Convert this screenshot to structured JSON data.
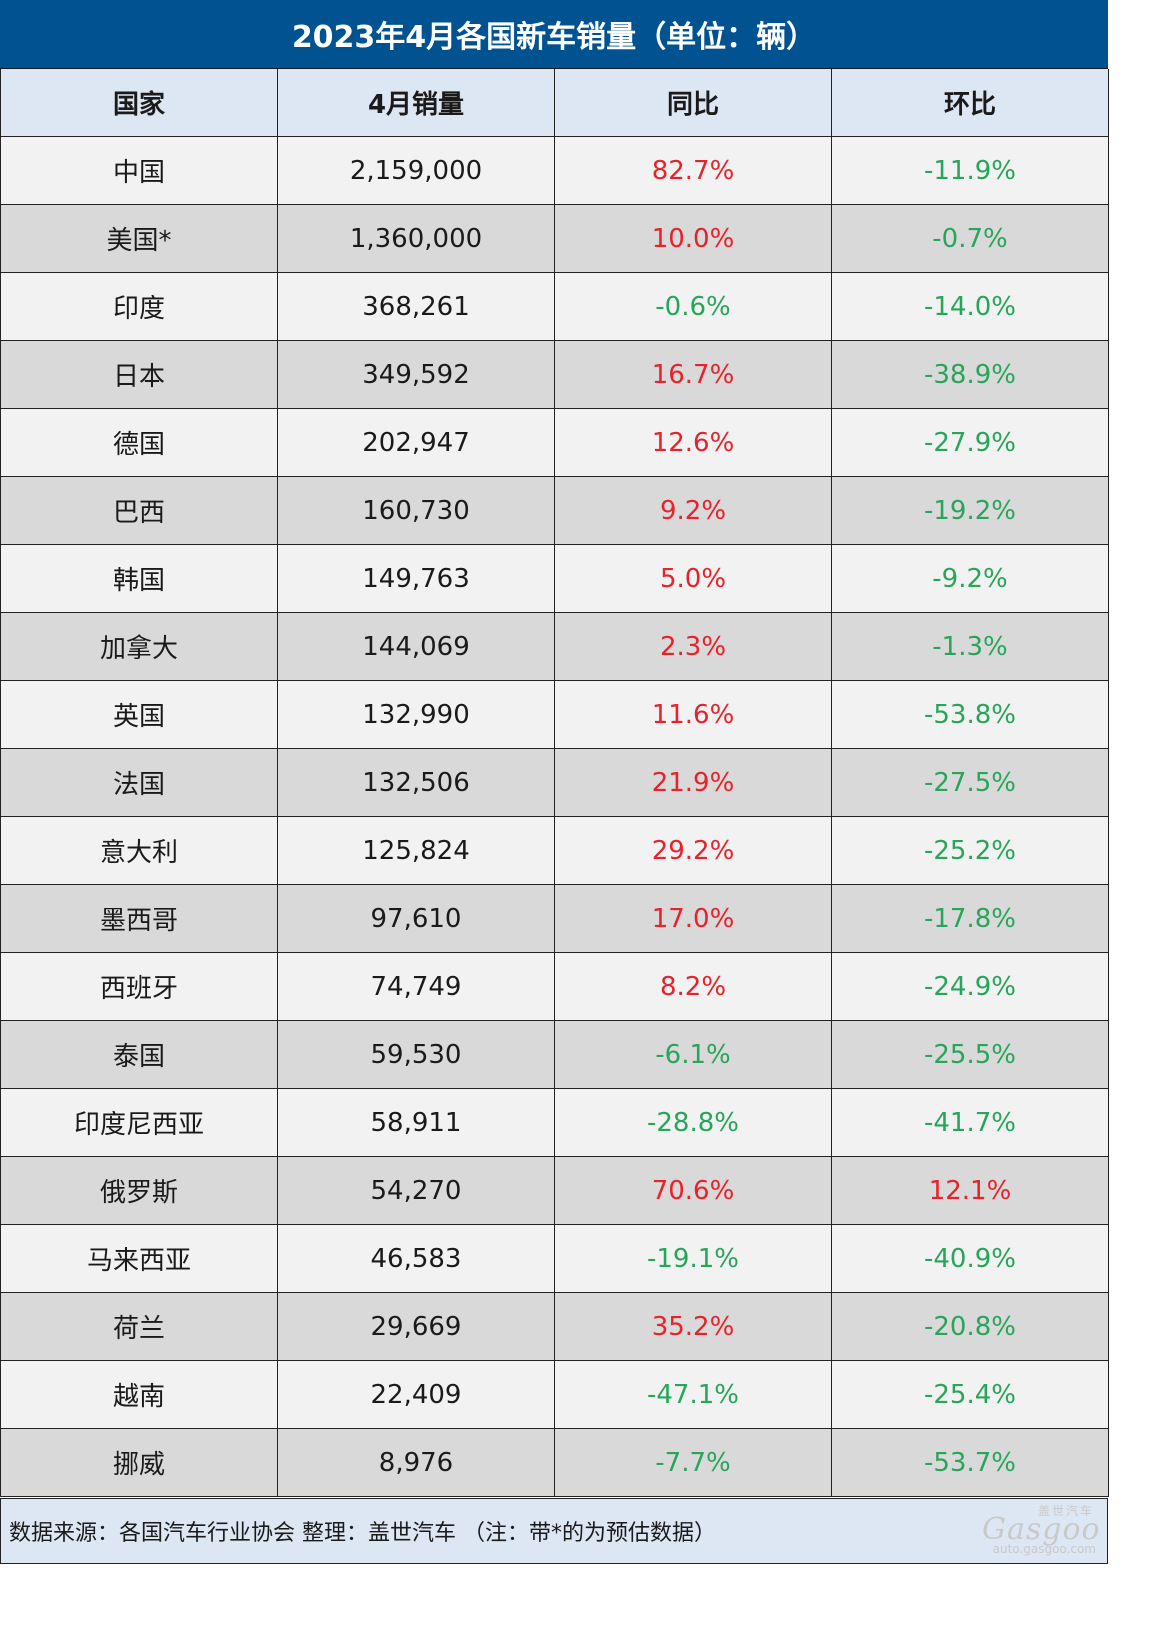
{
  "title": "2023年4月各国新车销量（单位：辆）",
  "columns": [
    "国家",
    "4月销量",
    "同比",
    "环比"
  ],
  "rows": [
    {
      "country": "中国",
      "sales": "2,159,000",
      "yoy": "82.7%",
      "mom": "-11.9%"
    },
    {
      "country": "美国*",
      "sales": "1,360,000",
      "yoy": "10.0%",
      "mom": "-0.7%"
    },
    {
      "country": "印度",
      "sales": "368,261",
      "yoy": "-0.6%",
      "mom": "-14.0%"
    },
    {
      "country": "日本",
      "sales": "349,592",
      "yoy": "16.7%",
      "mom": "-38.9%"
    },
    {
      "country": "德国",
      "sales": "202,947",
      "yoy": "12.6%",
      "mom": "-27.9%"
    },
    {
      "country": "巴西",
      "sales": "160,730",
      "yoy": "9.2%",
      "mom": "-19.2%"
    },
    {
      "country": "韩国",
      "sales": "149,763",
      "yoy": "5.0%",
      "mom": "-9.2%"
    },
    {
      "country": "加拿大",
      "sales": "144,069",
      "yoy": "2.3%",
      "mom": "-1.3%"
    },
    {
      "country": "英国",
      "sales": "132,990",
      "yoy": "11.6%",
      "mom": "-53.8%"
    },
    {
      "country": "法国",
      "sales": "132,506",
      "yoy": "21.9%",
      "mom": "-27.5%"
    },
    {
      "country": "意大利",
      "sales": "125,824",
      "yoy": "29.2%",
      "mom": "-25.2%"
    },
    {
      "country": "墨西哥",
      "sales": "97,610",
      "yoy": "17.0%",
      "mom": "-17.8%"
    },
    {
      "country": "西班牙",
      "sales": "74,749",
      "yoy": "8.2%",
      "mom": "-24.9%"
    },
    {
      "country": "泰国",
      "sales": "59,530",
      "yoy": "-6.1%",
      "mom": "-25.5%"
    },
    {
      "country": "印度尼西亚",
      "sales": "58,911",
      "yoy": "-28.8%",
      "mom": "-41.7%"
    },
    {
      "country": "俄罗斯",
      "sales": "54,270",
      "yoy": "70.6%",
      "mom": "12.1%"
    },
    {
      "country": "马来西亚",
      "sales": "46,583",
      "yoy": "-19.1%",
      "mom": "-40.9%"
    },
    {
      "country": "荷兰",
      "sales": "29,669",
      "yoy": "35.2%",
      "mom": "-20.8%"
    },
    {
      "country": "越南",
      "sales": "22,409",
      "yoy": "-47.1%",
      "mom": "-25.4%"
    },
    {
      "country": "挪威",
      "sales": "8,976",
      "yoy": "-7.7%",
      "mom": "-53.7%"
    }
  ],
  "footer": "数据来源：各国汽车行业协会 整理：盖世汽车 （注：带*的为预估数据）",
  "watermark": {
    "top": "盖世汽车",
    "logo": "Gasgoo",
    "url": "auto.gasgoo.com"
  },
  "colors": {
    "title_bg": "#005291",
    "header_bg": "#dde7f3",
    "row_light": "#f2f2f2",
    "row_dark": "#d9d9d9",
    "positive": "#e8212a",
    "negative": "#27a55a"
  }
}
